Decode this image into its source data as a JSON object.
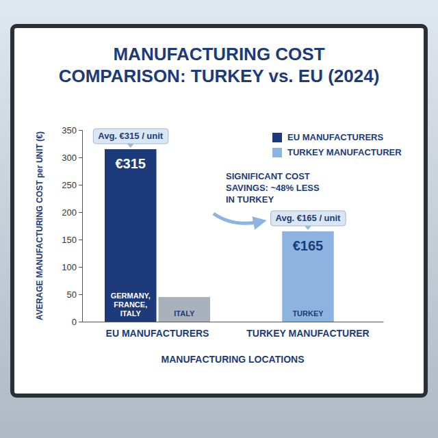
{
  "chart_data": {
    "type": "bar",
    "title": "MANUFACTURING COST COMPARISON: TURKEY vs. EU (2024)",
    "y_label": "AVERAGE MANUFACTURING COST per UNIT (€)",
    "x_label": "MANUFACTURING LOCATIONS",
    "categories": [
      "GERMANY, FRANCE, ITALY",
      "ITALY",
      "TURKEY"
    ],
    "values": [
      315,
      45,
      165
    ],
    "colors": [
      "#1d3b7a",
      "#a9b1bd",
      "#8db4e0"
    ],
    "data_labels": true,
    "value_labels": [
      "€315",
      null,
      "€165"
    ],
    "callouts": [
      "Avg. €315 / unit",
      null,
      "Avg. €165 / unit"
    ],
    "groups": [
      {
        "label": "EU MANUFACTURERS",
        "members": [
          "GERMANY, FRANCE, ITALY",
          "ITALY"
        ]
      },
      {
        "label": "TURKEY MANUFACTURER",
        "members": [
          "TURKEY"
        ]
      }
    ],
    "legend": "top-right",
    "legend_entries": [
      {
        "name": "EU MANUFACTURERS",
        "color": "#1d3b7a"
      },
      {
        "name": "TURKEY MANUFACTURER",
        "color": "#8db4e0"
      }
    ],
    "annotation": "SIGNIFICANT COST SAVINGS: ~48% LESS IN TURKEY",
    "ylim": [
      0,
      350
    ],
    "yticks": [
      0,
      50,
      100,
      150,
      200,
      250,
      300,
      350
    ],
    "grid": false
  }
}
